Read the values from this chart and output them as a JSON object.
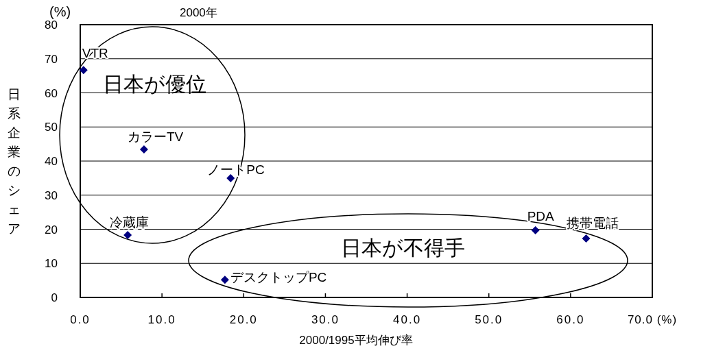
{
  "chart_data": {
    "type": "scatter",
    "title": "2000年",
    "xlabel": "2000/1995平均伸び率",
    "ylabel": "日系企業のシェア",
    "x": [
      0.4,
      7.8,
      18.4,
      5.8,
      17.7,
      55.7,
      61.9
    ],
    "series": [
      {
        "color": "#000080",
        "values": [
          66.7,
          43.4,
          35.0,
          18.3,
          5.2,
          19.7,
          17.3
        ]
      }
    ],
    "marker": "diamond",
    "grid": "y",
    "xlim": [
      0,
      70
    ],
    "ylim": [
      0,
      80
    ],
    "xticks": [
      {
        "value": 0,
        "label": "0.0"
      },
      {
        "value": 10,
        "label": "10.0"
      },
      {
        "value": 20,
        "label": "20.0"
      },
      {
        "value": 30,
        "label": "30.0"
      },
      {
        "value": 40,
        "label": "40.0"
      },
      {
        "value": 50,
        "label": "50.0"
      },
      {
        "value": 60,
        "label": "60.0"
      },
      {
        "value": 70,
        "label": "70.0 (%)"
      }
    ],
    "yticks": [
      0,
      10,
      20,
      30,
      40,
      50,
      60,
      70,
      80
    ],
    "annotations": [
      {
        "text": "VTR",
        "x": 0.4,
        "y": 66.7
      },
      {
        "text": "カラーTV",
        "x": 7.8,
        "y": 43.4
      },
      {
        "text": "ノートPC",
        "x": 18.4,
        "y": 35.0
      },
      {
        "text": "冷蔵庫",
        "x": 5.8,
        "y": 18.3
      },
      {
        "text": "デスクトップPC",
        "x": 17.7,
        "y": 5.2
      },
      {
        "text": "PDA",
        "x": 55.7,
        "y": 19.7
      },
      {
        "text": "携帯電話",
        "x": 61.9,
        "y": 17.3
      },
      "(%)",
      "日本が優位",
      "日本が不得手"
    ]
  }
}
